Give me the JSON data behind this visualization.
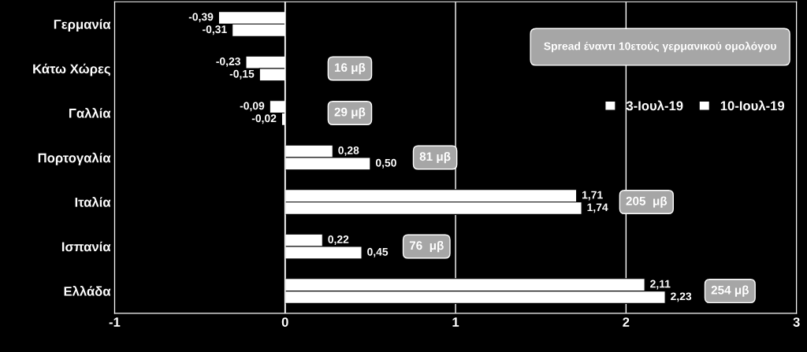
{
  "chart_data": {
    "type": "bar",
    "orientation": "horizontal",
    "categories": [
      "Γερμανία",
      "Κάτω Χώρες",
      "Γαλλία",
      "Πορτογαλία",
      "Ιταλία",
      "Ισπανία",
      "Ελλάδα"
    ],
    "series": [
      {
        "name": "3-Ιουλ-19",
        "color": "#ffffff",
        "values": [
          -0.39,
          -0.23,
          -0.09,
          0.28,
          1.71,
          0.22,
          2.11
        ],
        "value_labels": [
          "-0,39",
          "-0,23",
          "-0,09",
          "0,28",
          "1,71",
          "0,22",
          "2,11"
        ]
      },
      {
        "name": "10-Ιουλ-19",
        "color": "#ffffff",
        "values": [
          -0.31,
          -0.15,
          -0.02,
          0.5,
          1.74,
          0.45,
          2.23
        ],
        "value_labels": [
          "-0,31",
          "-0,15",
          "-0,02",
          "0,50",
          "1,74",
          "0,45",
          "2,23"
        ]
      }
    ],
    "xlim": [
      -1,
      3
    ],
    "xticks": [
      -1,
      0,
      1,
      2,
      3
    ],
    "grid": "x",
    "legend": "top right",
    "annotations": [
      "Spread έναντι 10ετούς γερμανικού ομολόγου",
      "16 μβ",
      "29 μβ",
      "81 μβ",
      "205  μβ",
      "76  μβ",
      "254 μβ"
    ]
  }
}
